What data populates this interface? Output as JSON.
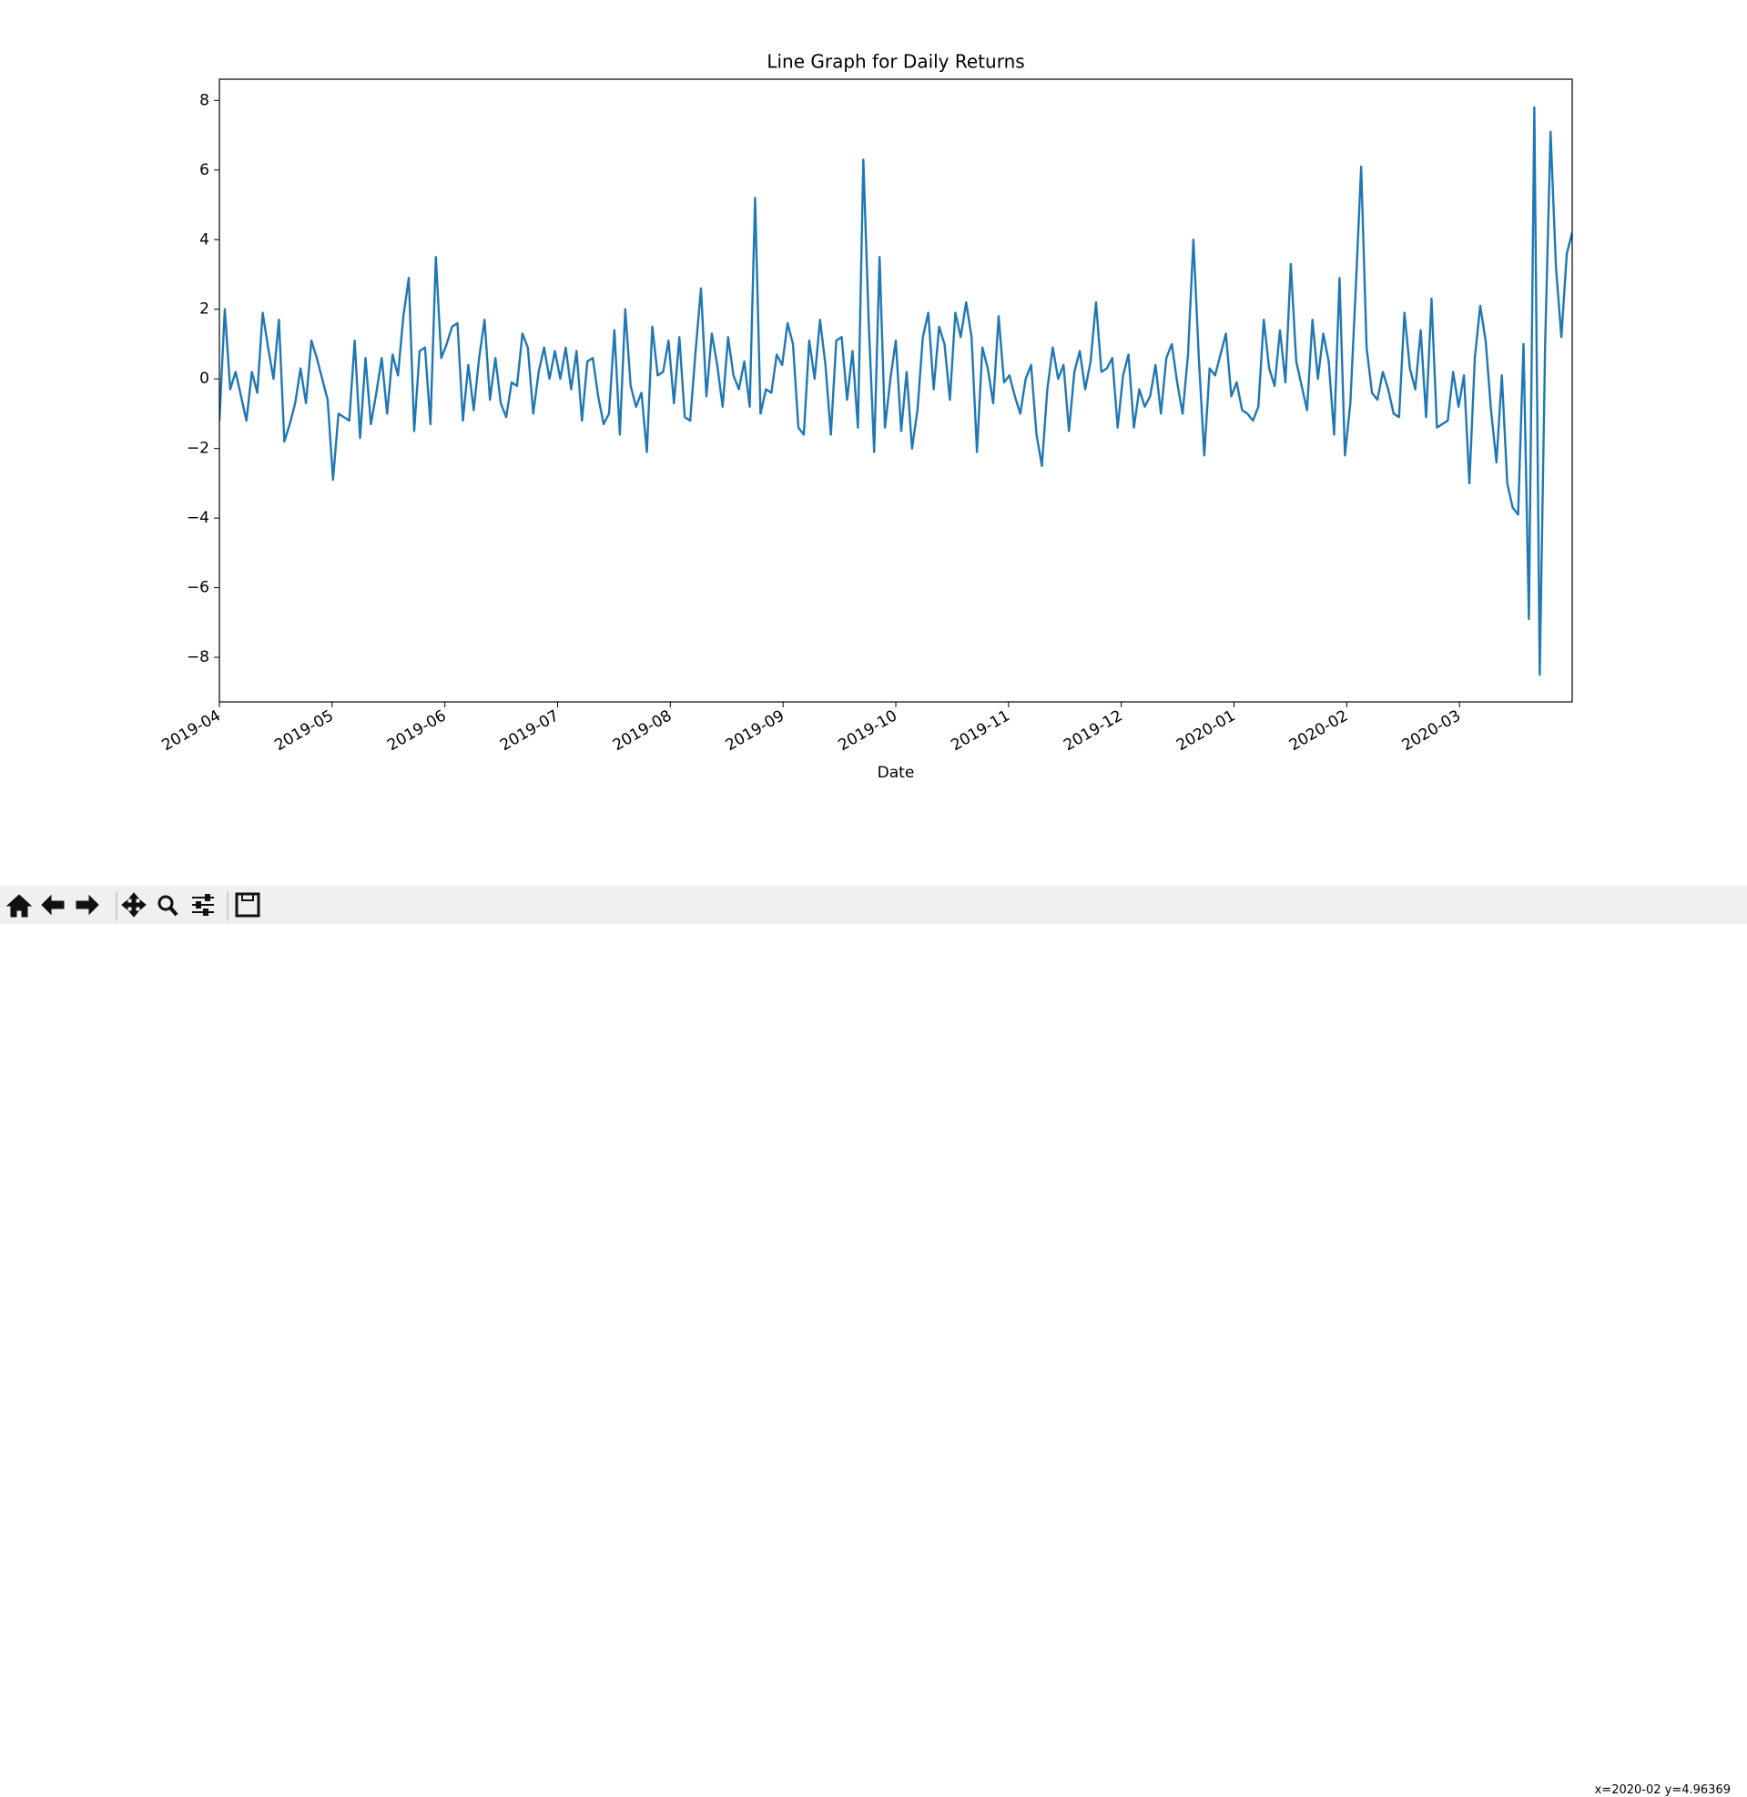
{
  "chart_data": {
    "type": "line",
    "title": "Line Graph for Daily Returns",
    "x_label": "Date",
    "xlim": [
      "2019-04",
      "2020-04"
    ],
    "xticks": [
      "2019-04",
      "2019-05",
      "2019-06",
      "2019-07",
      "2019-08",
      "2019-09",
      "2019-10",
      "2019-11",
      "2019-12",
      "2020-01",
      "2020-02",
      "2020-03"
    ],
    "ylim": [
      -9.28,
      8.61
    ],
    "yticks": [
      {
        "value": -8,
        "label": "−8"
      },
      {
        "value": -6,
        "label": "−6"
      },
      {
        "value": -4,
        "label": "−4"
      },
      {
        "value": -2,
        "label": "−2"
      },
      0,
      2,
      4,
      6,
      8
    ],
    "grid": false,
    "series": [
      {
        "color": "#1f77b4",
        "values": [
          -1.2,
          2.0,
          -0.3,
          0.2,
          -0.5,
          -1.2,
          0.2,
          -0.4,
          1.9,
          0.9,
          0.0,
          1.7,
          -1.8,
          -1.3,
          -0.7,
          0.3,
          -0.7,
          1.1,
          0.6,
          0.0,
          -0.6,
          -2.9,
          -1.0,
          -1.1,
          -1.2,
          1.1,
          -1.7,
          0.6,
          -1.3,
          -0.4,
          0.6,
          -1.0,
          0.7,
          0.1,
          1.8,
          2.9,
          -1.5,
          0.8,
          0.9,
          -1.3,
          3.5,
          0.6,
          1.0,
          1.5,
          1.6,
          -1.2,
          0.4,
          -0.9,
          0.6,
          1.7,
          -0.6,
          0.6,
          -0.7,
          -1.1,
          -0.1,
          -0.2,
          1.3,
          0.9,
          -1.0,
          0.2,
          0.9,
          0.0,
          0.8,
          0.0,
          0.9,
          -0.3,
          0.8,
          -1.2,
          0.5,
          0.6,
          -0.5,
          -1.3,
          -1.0,
          1.4,
          -1.6,
          2.0,
          -0.2,
          -0.8,
          -0.4,
          -2.1,
          1.5,
          0.1,
          0.2,
          1.1,
          -0.7,
          1.2,
          -1.1,
          -1.2,
          0.8,
          2.6,
          -0.5,
          1.3,
          0.4,
          -0.8,
          1.2,
          0.1,
          -0.3,
          0.5,
          -0.8,
          5.2,
          -1.0,
          -0.3,
          -0.4,
          0.7,
          0.4,
          1.6,
          1.0,
          -1.4,
          -1.6,
          1.1,
          0.0,
          1.7,
          0.4,
          -1.6,
          1.1,
          1.2,
          -0.6,
          0.8,
          -1.4,
          6.3,
          1.6,
          -2.1,
          3.5,
          -1.4,
          0.0,
          1.1,
          -1.5,
          0.2,
          -2.0,
          -0.9,
          1.2,
          1.9,
          -0.3,
          1.5,
          1.0,
          -0.6,
          1.9,
          1.2,
          2.2,
          1.2,
          -2.1,
          0.9,
          0.3,
          -0.7,
          1.8,
          -0.1,
          0.1,
          -0.5,
          -1.0,
          0.0,
          0.4,
          -1.6,
          -2.5,
          -0.3,
          0.9,
          0.0,
          0.4,
          -1.5,
          0.2,
          0.8,
          -0.3,
          0.5,
          2.2,
          0.2,
          0.3,
          0.6,
          -1.4,
          0.1,
          0.7,
          -1.4,
          -0.3,
          -0.8,
          -0.5,
          0.4,
          -1.0,
          0.6,
          1.0,
          -0.1,
          -1.0,
          0.7,
          4.0,
          0.6,
          -2.2,
          0.3,
          0.1,
          0.7,
          1.3,
          -0.5,
          -0.1,
          -0.9,
          -1.0,
          -1.2,
          -0.8,
          1.7,
          0.3,
          -0.2,
          1.4,
          -0.1,
          3.3,
          0.5,
          -0.2,
          -0.9,
          1.7,
          0.0,
          1.3,
          0.5,
          -1.6,
          2.9,
          -2.2,
          -0.7,
          2.6,
          6.1,
          0.9,
          -0.4,
          -0.6,
          0.2,
          -0.3,
          -1.0,
          -1.1,
          1.9,
          0.3,
          -0.3,
          1.4,
          -1.1,
          2.3,
          -1.4,
          -1.3,
          -1.2,
          0.2,
          -0.8,
          0.1,
          -3.0,
          0.6,
          2.1,
          1.1,
          -0.9,
          -2.4,
          0.1,
          -3.0,
          -3.7,
          -3.9,
          1.0,
          -6.9,
          7.8,
          -8.5,
          1.0,
          7.1,
          3.2,
          1.2,
          3.6,
          4.2
        ]
      }
    ]
  },
  "status": "x=2020-02 y=4.96369"
}
